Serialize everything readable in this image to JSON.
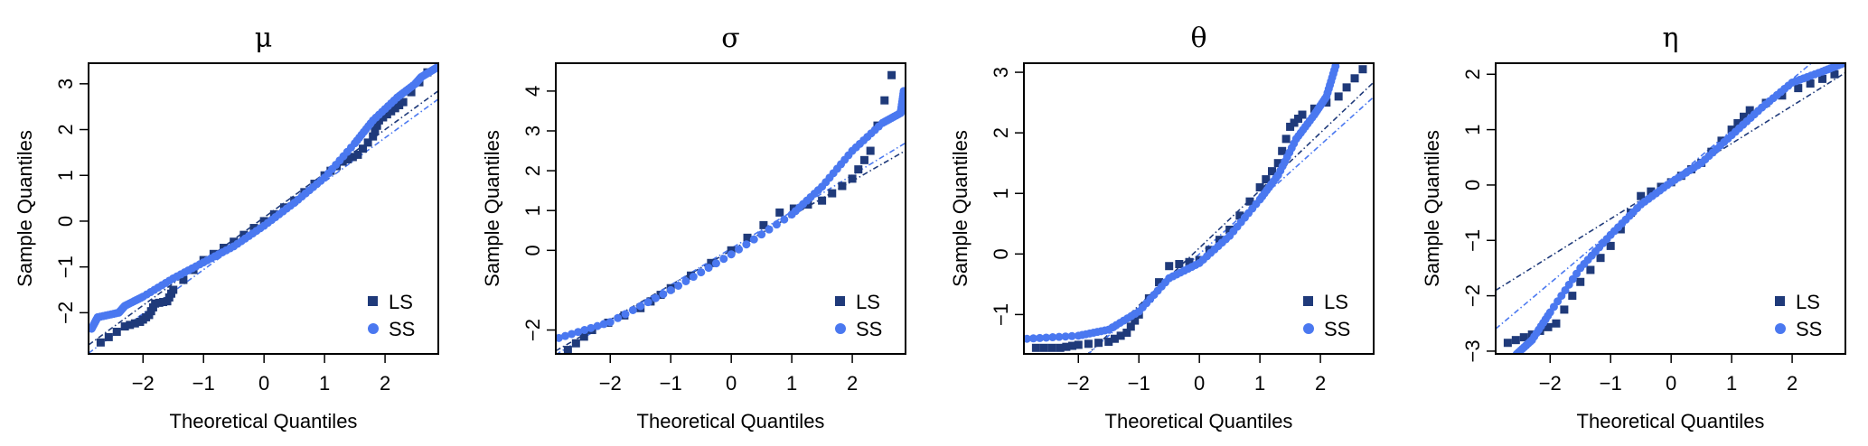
{
  "colors": {
    "LS": "#1f3a7a",
    "SS": "#4a78f0"
  },
  "chart_data": [
    {
      "type": "scatter",
      "title": "μ",
      "xlabel": "Theoretical Quantiles",
      "ylabel": "Sample Quantiles",
      "xlim": [
        -2.9,
        2.88
      ],
      "ylim": [
        -2.9,
        3.45
      ],
      "xticks": [
        -2,
        -1,
        0,
        1,
        2
      ],
      "yticks": [
        -2,
        -1,
        0,
        1,
        2,
        3
      ],
      "legend": {
        "position": "bottom-right",
        "entries": [
          "LS",
          "SS"
        ]
      },
      "series": [
        {
          "name": "LS",
          "marker": "square",
          "points": [
            [
              -2.7,
              -2.65
            ],
            [
              -2.3,
              -2.3
            ],
            [
              -2.05,
              -2.2
            ],
            [
              -1.9,
              -2.05
            ],
            [
              -1.8,
              -1.8
            ],
            [
              -1.6,
              -1.75
            ],
            [
              -1.5,
              -1.5
            ],
            [
              -1,
              -0.85
            ],
            [
              -0.5,
              -0.45
            ],
            [
              0,
              0
            ],
            [
              0.5,
              0.45
            ],
            [
              1,
              1.0
            ],
            [
              1.3,
              1.3
            ],
            [
              1.55,
              1.45
            ],
            [
              1.8,
              1.85
            ],
            [
              1.9,
              2.2
            ],
            [
              2.1,
              2.4
            ],
            [
              2.3,
              2.6
            ],
            [
              2.7,
              3.25
            ]
          ],
          "ref_line": {
            "slope": 0.96,
            "intercept": 0.08
          }
        },
        {
          "name": "SS",
          "marker": "circle",
          "points": [
            [
              -2.85,
              -2.35
            ],
            [
              -2.75,
              -2.1
            ],
            [
              -2.4,
              -2.0
            ],
            [
              -2.3,
              -1.85
            ],
            [
              -2,
              -1.65
            ],
            [
              -1.5,
              -1.25
            ],
            [
              -1,
              -0.9
            ],
            [
              -0.5,
              -0.55
            ],
            [
              0,
              -0.1
            ],
            [
              0.5,
              0.4
            ],
            [
              1,
              0.95
            ],
            [
              1.5,
              1.7
            ],
            [
              1.8,
              2.2
            ],
            [
              2.2,
              2.7
            ],
            [
              2.5,
              3.0
            ],
            [
              2.6,
              3.15
            ],
            [
              2.85,
              3.35
            ]
          ],
          "ref_line": {
            "slope": 0.96,
            "intercept": -0.1
          }
        }
      ]
    },
    {
      "type": "scatter",
      "title": "σ",
      "xlabel": "Theoretical Quantiles",
      "ylabel": "Sample Quantiles",
      "xlim": [
        -2.9,
        2.88
      ],
      "ylim": [
        -2.6,
        4.7
      ],
      "xticks": [
        -2,
        -1,
        0,
        1,
        2
      ],
      "yticks": [
        -2,
        0,
        1,
        2,
        3,
        4
      ],
      "legend": {
        "position": "bottom-right",
        "entries": [
          "LS",
          "SS"
        ]
      },
      "series": [
        {
          "name": "LS",
          "marker": "square",
          "points": [
            [
              -2.7,
              -2.5
            ],
            [
              -2.3,
              -2.0
            ],
            [
              -1.5,
              -1.45
            ],
            [
              -1,
              -0.95
            ],
            [
              0,
              0
            ],
            [
              0.8,
              0.95
            ],
            [
              1.5,
              1.25
            ],
            [
              2,
              1.8
            ],
            [
              2.3,
              2.5
            ],
            [
              2.65,
              4.4
            ]
          ],
          "ref_line": {
            "slope": 0.87,
            "intercept": 0.0
          }
        },
        {
          "name": "SS",
          "marker": "circle",
          "points": [
            [
              -2.85,
              -2.2
            ],
            [
              -2,
              -1.8
            ],
            [
              -1,
              -1.0
            ],
            [
              0,
              -0.1
            ],
            [
              1,
              0.9
            ],
            [
              1.5,
              1.6
            ],
            [
              2,
              2.5
            ],
            [
              2.5,
              3.2
            ],
            [
              2.8,
              3.45
            ],
            [
              2.85,
              4.0
            ]
          ],
          "ref_line": {
            "slope": 0.92,
            "intercept": 0.05
          }
        }
      ]
    },
    {
      "type": "scatter",
      "title": "θ",
      "xlabel": "Theoretical Quantiles",
      "ylabel": "Sample Quantiles",
      "xlim": [
        -2.9,
        2.88
      ],
      "ylim": [
        -1.65,
        3.15
      ],
      "xticks": [
        -2,
        -1,
        0,
        1,
        2
      ],
      "yticks": [
        -1,
        0,
        1,
        2,
        3
      ],
      "legend": {
        "position": "bottom-right",
        "entries": [
          "LS",
          "SS"
        ]
      },
      "series": [
        {
          "name": "LS",
          "marker": "square",
          "points": [
            [
              -2.7,
              -1.55
            ],
            [
              -2.3,
              -1.55
            ],
            [
              -2,
              -1.5
            ],
            [
              -1.5,
              -1.45
            ],
            [
              -1.2,
              -1.3
            ],
            [
              -1,
              -1.0
            ],
            [
              -0.5,
              -0.2
            ],
            [
              0,
              -0.1
            ],
            [
              0.5,
              0.4
            ],
            [
              1,
              1.1
            ],
            [
              1.3,
              1.5
            ],
            [
              1.5,
              2.1
            ],
            [
              1.7,
              2.3
            ],
            [
              2.3,
              2.6
            ],
            [
              2.7,
              3.05
            ]
          ],
          "ref_line": {
            "slope": 0.95,
            "intercept": 0.1
          }
        },
        {
          "name": "SS",
          "marker": "circle",
          "points": [
            [
              -2.85,
              -1.4
            ],
            [
              -2,
              -1.35
            ],
            [
              -1.5,
              -1.25
            ],
            [
              -1,
              -0.95
            ],
            [
              -0.5,
              -0.4
            ],
            [
              0,
              -0.15
            ],
            [
              0.5,
              0.3
            ],
            [
              1,
              0.9
            ],
            [
              1.3,
              1.3
            ],
            [
              1.6,
              1.9
            ],
            [
              1.9,
              2.3
            ],
            [
              2.1,
              2.6
            ],
            [
              2.25,
              3.1
            ]
          ],
          "ref_line": {
            "slope": 0.9,
            "intercept": 0.0
          }
        }
      ]
    },
    {
      "type": "scatter",
      "title": "η",
      "xlabel": "Theoretical Quantiles",
      "ylabel": "Sample Quantiles",
      "xlim": [
        -2.9,
        2.88
      ],
      "ylim": [
        -3.05,
        2.2
      ],
      "xticks": [
        -2,
        -1,
        0,
        1,
        2
      ],
      "yticks": [
        -3,
        -2,
        -1,
        0,
        1,
        2
      ],
      "legend": {
        "position": "bottom-right",
        "entries": [
          "LS",
          "SS"
        ]
      },
      "series": [
        {
          "name": "LS",
          "marker": "square",
          "points": [
            [
              -2.7,
              -2.85
            ],
            [
              -2.3,
              -2.7
            ],
            [
              -1.9,
              -2.5
            ],
            [
              -1.5,
              -1.75
            ],
            [
              -1,
              -1.1
            ],
            [
              -0.5,
              -0.2
            ],
            [
              0,
              0.05
            ],
            [
              0.5,
              0.4
            ],
            [
              1,
              1.0
            ],
            [
              1.3,
              1.35
            ],
            [
              2.1,
              1.75
            ],
            [
              2.7,
              2.0
            ]
          ],
          "ref_line": {
            "slope": 0.68,
            "intercept": 0.07
          }
        },
        {
          "name": "SS",
          "marker": "circle",
          "points": [
            [
              -2.55,
              -3.05
            ],
            [
              -2.3,
              -2.8
            ],
            [
              -2,
              -2.3
            ],
            [
              -1.5,
              -1.5
            ],
            [
              -1,
              -0.9
            ],
            [
              -0.5,
              -0.35
            ],
            [
              0,
              0.05
            ],
            [
              0.5,
              0.4
            ],
            [
              1,
              0.9
            ],
            [
              1.5,
              1.4
            ],
            [
              2,
              1.85
            ],
            [
              2.5,
              2.05
            ],
            [
              2.85,
              2.2
            ]
          ],
          "ref_line": {
            "slope": 0.92,
            "intercept": 0.07
          }
        }
      ]
    }
  ]
}
